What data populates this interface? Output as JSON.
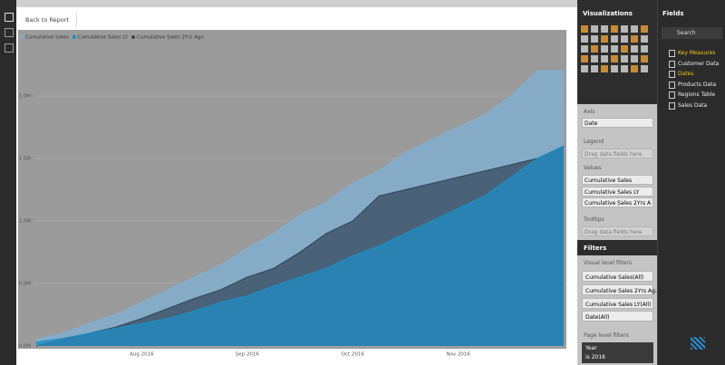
{
  "toolbar": {
    "back": "Back to Report"
  },
  "chart_data": {
    "type": "area",
    "categories": [
      null,
      null,
      null,
      null,
      "Aug 2016",
      null,
      null,
      null,
      "Sep 2016",
      null,
      null,
      null,
      "Oct 2016",
      null,
      null,
      null,
      "Nov 2016",
      null,
      null,
      null,
      null
    ],
    "series": [
      {
        "name": "Cumulative Sales",
        "color": "#7fb0d4",
        "values": [
          0.05,
          0.1,
          0.18,
          0.25,
          0.35,
          0.45,
          0.55,
          0.65,
          0.78,
          0.9,
          1.05,
          1.15,
          1.3,
          1.4,
          1.55,
          1.65,
          1.75,
          1.85,
          2.0,
          2.2,
          2.2
        ]
      },
      {
        "name": "Cumulative Sales 2Yrs Ago",
        "color": "#34495e",
        "values": [
          0,
          0.05,
          0.1,
          0.15,
          0.22,
          0.3,
          0.38,
          0.45,
          0.55,
          0.62,
          0.75,
          0.9,
          1.0,
          1.2,
          1.25,
          1.3,
          1.35,
          1.4,
          1.45,
          1.5,
          1.6
        ]
      },
      {
        "name": "Cumulative Sales LY",
        "color": "#1f8dc4",
        "values": [
          0.03,
          0.06,
          0.1,
          0.14,
          0.18,
          0.22,
          0.28,
          0.35,
          0.4,
          0.48,
          0.55,
          0.62,
          0.72,
          0.8,
          0.9,
          1.0,
          1.1,
          1.2,
          1.35,
          1.5,
          1.6
        ]
      }
    ],
    "legend_order": [
      0,
      2,
      1
    ],
    "ylim": [
      0,
      2.5
    ],
    "yticks": [
      {
        "value": 0,
        "label": "0.0M"
      },
      {
        "value": 0.5,
        "label": "0.5M"
      },
      {
        "value": 1,
        "label": "1.0M"
      },
      {
        "value": 1.5,
        "label": "1.5M"
      },
      {
        "value": 2,
        "label": "2.0M"
      }
    ],
    "grid": true
  },
  "visualizations": {
    "title": "Visualizations",
    "wells": {
      "axis": "Axis",
      "axis_field": "Date",
      "legend": "Legend",
      "legend_drop": "Drag data fields here",
      "values": "Values",
      "value_fields": [
        "Cumulative Sales",
        "Cumulative Sales LY",
        "Cumulative Sales 2Yrs A"
      ],
      "tooltips": "Tooltips",
      "tooltips_drop": "Drag data fields here"
    },
    "filters": {
      "title": "Filters",
      "visual_level": "Visual level filters",
      "visual_filters": [
        "Cumulative Sales(All)",
        "Cumulative Sales 2Yrs Ag...",
        "Cumulative Sales LY(All)",
        "Date(All)"
      ],
      "page_level": "Page level filters",
      "page_filter_name": "Year",
      "page_filter_value": "is 2016"
    }
  },
  "fields": {
    "title": "Fields",
    "search": "Search",
    "tables": [
      "Key Measures",
      "Customer Data",
      "Dates",
      "Products Data",
      "Regions Table",
      "Sales Data"
    ]
  }
}
